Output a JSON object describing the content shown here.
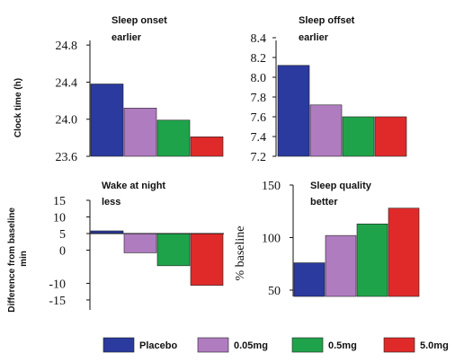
{
  "chart_data": [
    {
      "type": "bar",
      "title": "Sleep onset",
      "subtitle": "earlier",
      "ylabel": "Clock time (h)",
      "yticks": [
        23.6,
        24.0,
        24.4,
        24.8
      ],
      "ytick_labels": [
        "23.6",
        "24.0",
        "24.4",
        "24.8"
      ],
      "ylim": [
        23.6,
        24.85
      ],
      "categories": [
        "Placebo",
        "0.05mg",
        "0.5mg",
        "5.0mg"
      ],
      "values": [
        24.38,
        24.12,
        23.99,
        23.81
      ]
    },
    {
      "type": "bar",
      "title": "Sleep offset",
      "subtitle": "earlier",
      "ylabel": "",
      "yticks": [
        7.2,
        7.4,
        7.6,
        7.8,
        8.0,
        8.2,
        8.4
      ],
      "ytick_labels": [
        "7.2",
        "7.4",
        "7.6",
        "7.8",
        "8.0",
        "8.2",
        "8.4"
      ],
      "ylim": [
        7.2,
        8.4
      ],
      "categories": [
        "Placebo",
        "0.05mg",
        "0.5mg",
        "5.0mg"
      ],
      "values": [
        8.12,
        7.72,
        7.6,
        7.6
      ]
    },
    {
      "type": "bar",
      "title": "Wake at night",
      "subtitle": "less",
      "ylabel": "Difference from baseline min",
      "yticks": [
        -15,
        -10,
        0,
        5,
        10,
        15
      ],
      "ytick_labels": [
        "-15",
        "-10",
        "0",
        "5",
        "10",
        "15"
      ],
      "ylim": [
        -18,
        15
      ],
      "baseline": 5,
      "categories": [
        "Placebo",
        "0.05mg",
        "0.5mg",
        "5.0mg"
      ],
      "values": [
        5.8,
        -0.8,
        -4.7,
        -10.6
      ]
    },
    {
      "type": "bar",
      "title": "Sleep quality",
      "subtitle": "better",
      "ylabel": "% baseline",
      "yticks": [
        50,
        100,
        150
      ],
      "ytick_labels": [
        "50",
        "100",
        "150"
      ],
      "ylim": [
        44,
        150
      ],
      "categories": [
        "Placebo",
        "0.05mg",
        "0.5mg",
        "5.0mg"
      ],
      "values": [
        76,
        102,
        113,
        128
      ]
    }
  ],
  "legend": {
    "placement": "bottom",
    "items": [
      {
        "label": "Placebo",
        "color": "#2a3a9e"
      },
      {
        "label": "0.05mg",
        "color": "#b07cc0"
      },
      {
        "label": "0.5mg",
        "color": "#1fa34a"
      },
      {
        "label": "5.0mg",
        "color": "#e02a2a"
      }
    ]
  }
}
